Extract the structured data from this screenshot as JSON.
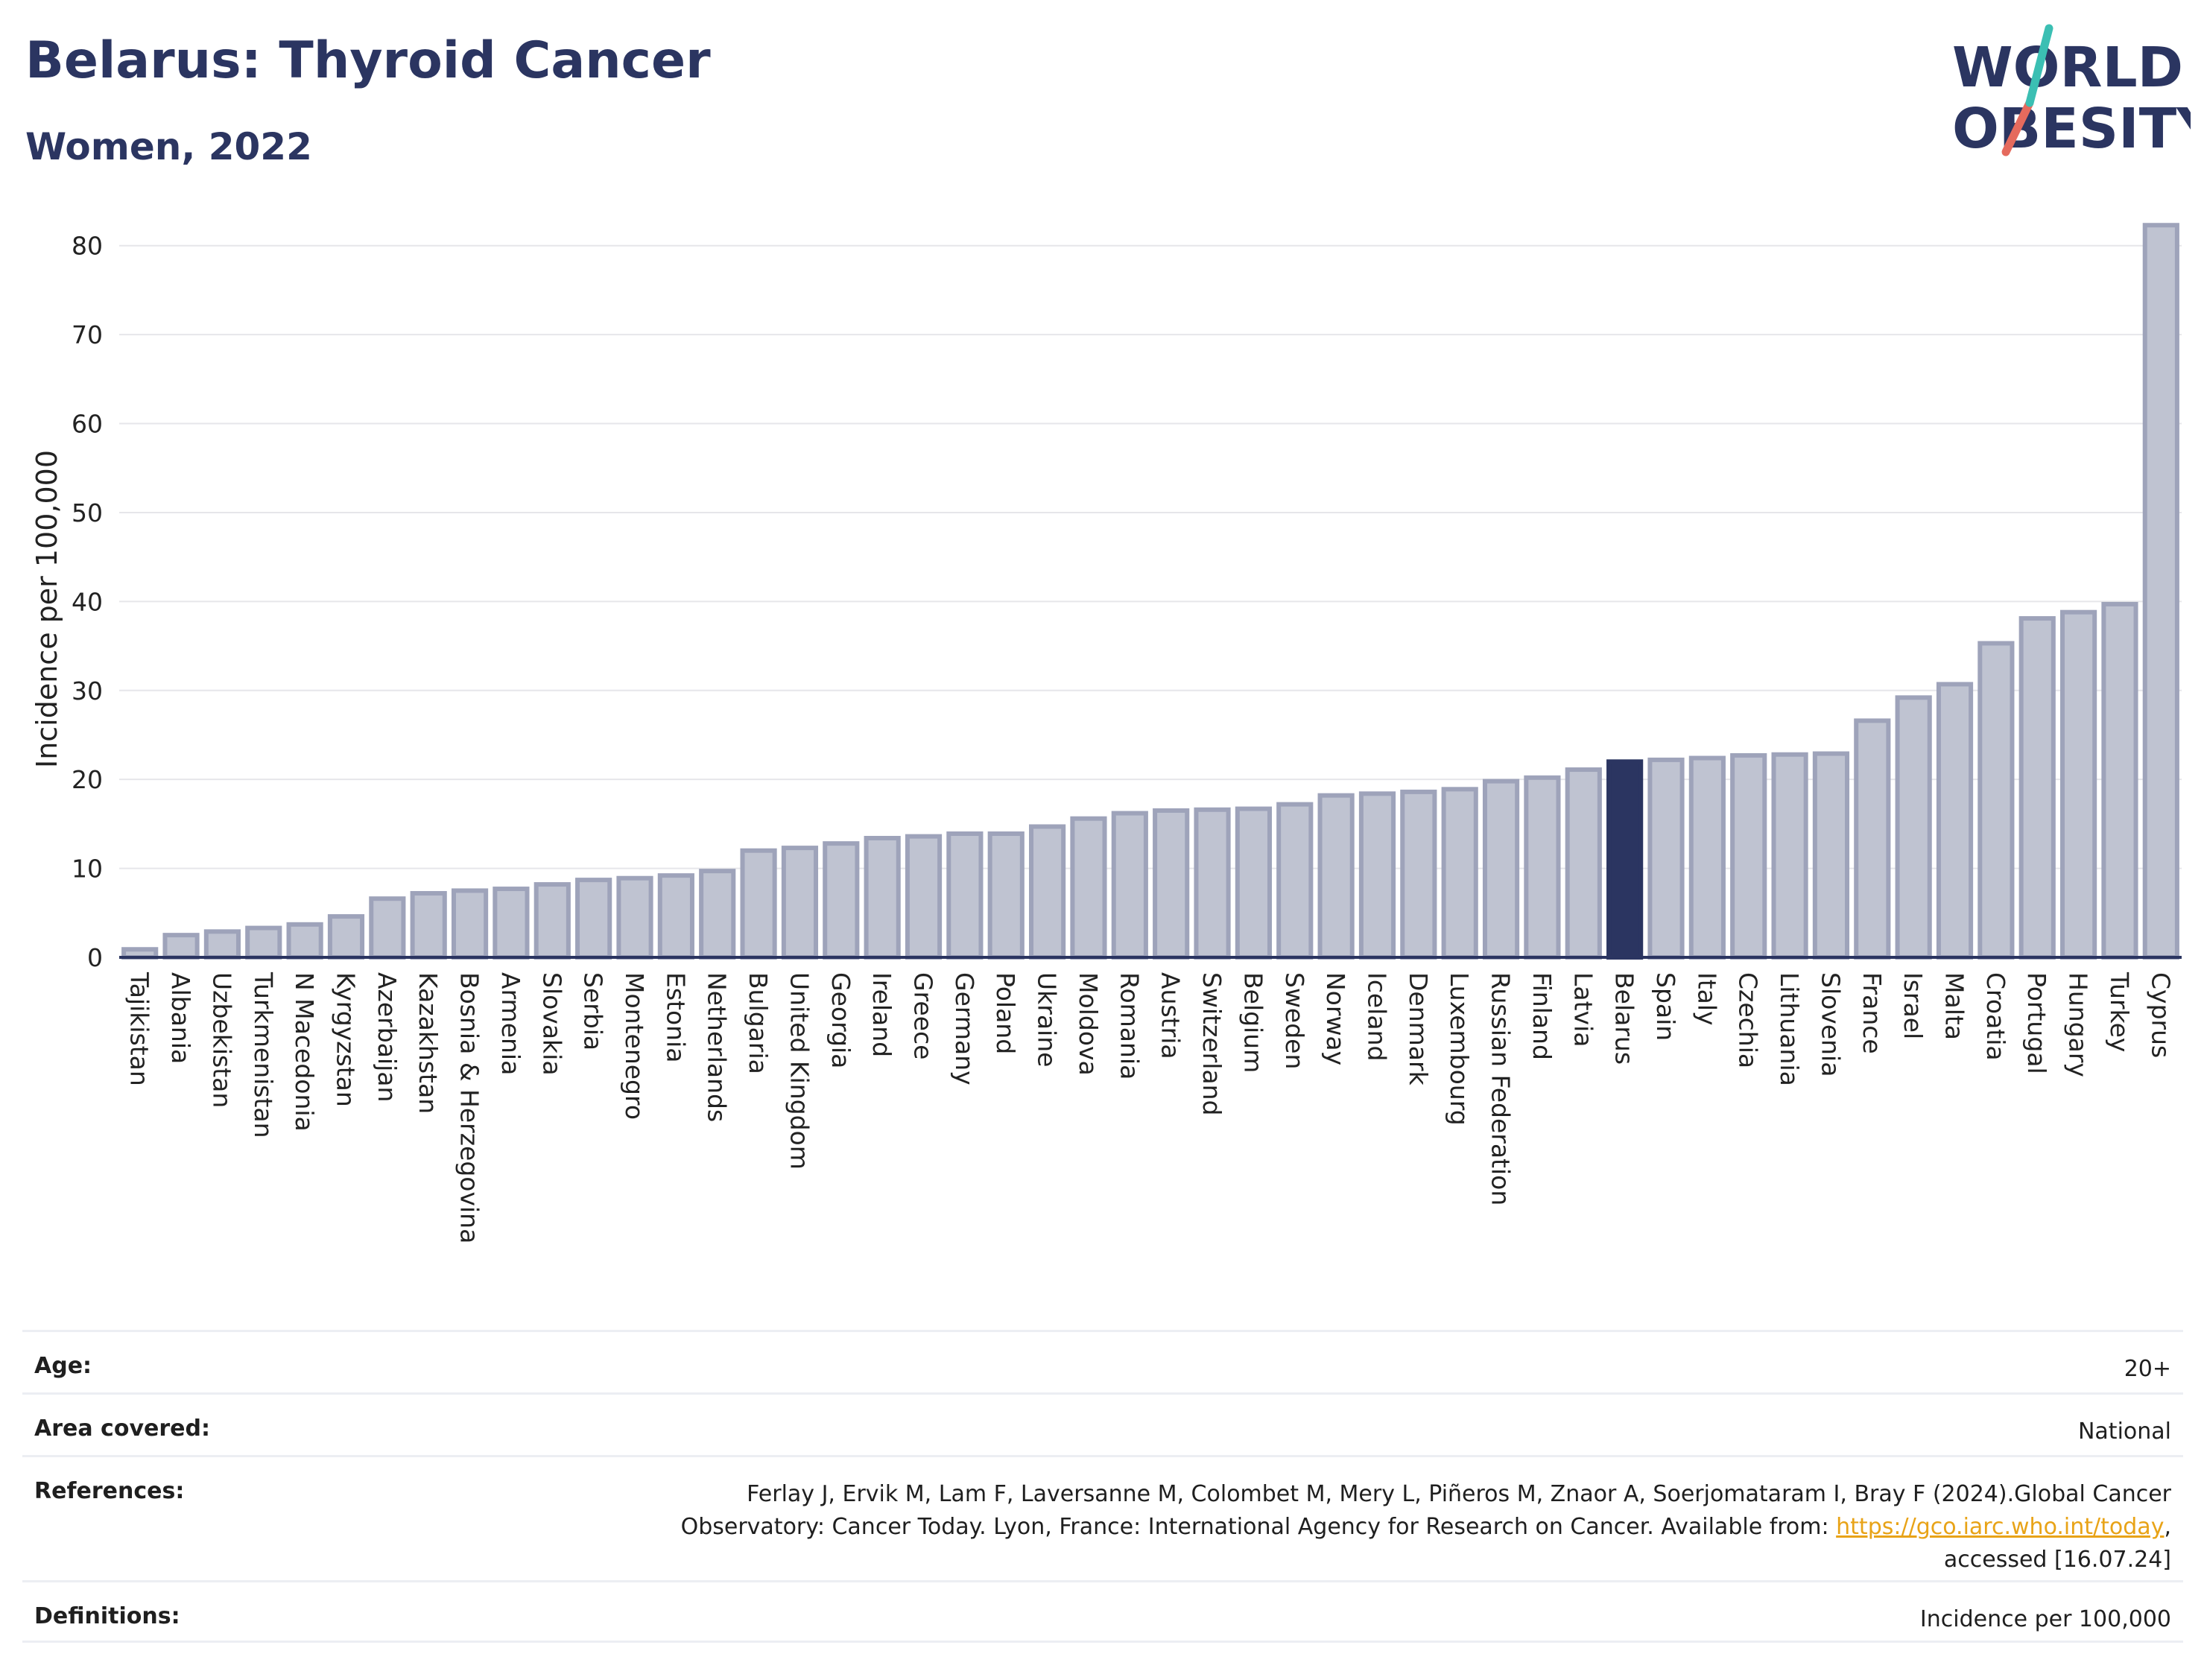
{
  "header": {
    "title": "Belarus: Thyroid Cancer",
    "subtitle": "Women, 2022"
  },
  "logo": {
    "line1": "WORLD",
    "line2": "OBESITY"
  },
  "colors": {
    "accent": "#2b3561",
    "bar": "#bfc3d1",
    "bar_border": "#9ea3ba",
    "logo_teal": "#3bbfb3",
    "logo_coral": "#e56a5d",
    "link": "#e8a317"
  },
  "chart_data": {
    "type": "bar",
    "ylabel": "Incidence per 100,000",
    "ylim": [
      0,
      85
    ],
    "yticks": [
      0,
      10,
      20,
      30,
      40,
      50,
      60,
      70,
      80
    ],
    "grid": true,
    "highlight": "Belarus",
    "categories": [
      "Tajikistan",
      "Albania",
      "Uzbekistan",
      "Turkmenistan",
      "N Macedonia",
      "Kyrgyzstan",
      "Azerbaijan",
      "Kazakhstan",
      "Bosnia & Herzegovina",
      "Armenia",
      "Slovakia",
      "Serbia",
      "Montenegro",
      "Estonia",
      "Netherlands",
      "Bulgaria",
      "United Kingdom",
      "Georgia",
      "Ireland",
      "Greece",
      "Germany",
      "Poland",
      "Ukraine",
      "Moldova",
      "Romania",
      "Austria",
      "Switzerland",
      "Belgium",
      "Sweden",
      "Norway",
      "Iceland",
      "Denmark",
      "Luxembourg",
      "Russian Federation",
      "Finland",
      "Latvia",
      "Belarus",
      "Spain",
      "Italy",
      "Czechia",
      "Lithuania",
      "Slovenia",
      "France",
      "Israel",
      "Malta",
      "Croatia",
      "Portugal",
      "Hungary",
      "Turkey",
      "Cyprus"
    ],
    "values": [
      0.9,
      2.5,
      2.9,
      3.3,
      3.7,
      4.6,
      6.6,
      7.2,
      7.5,
      7.7,
      8.2,
      8.7,
      8.9,
      9.2,
      9.7,
      12.0,
      12.3,
      12.8,
      13.4,
      13.6,
      13.9,
      13.9,
      14.7,
      15.6,
      16.2,
      16.5,
      16.6,
      16.7,
      17.2,
      18.2,
      18.4,
      18.6,
      18.9,
      19.8,
      20.2,
      21.1,
      22.0,
      22.2,
      22.4,
      22.7,
      22.8,
      22.9,
      26.6,
      29.2,
      30.7,
      35.3,
      38.1,
      38.8,
      39.7,
      82.3
    ]
  },
  "info": {
    "age_label": "Age:",
    "age_value": "20+",
    "area_label": "Area covered:",
    "area_value": "National",
    "references_label": "References:",
    "references_line1": "Ferlay J, Ervik M, Lam F, Laversanne M, Colombet M, Mery L, Piñeros M, Znaor A, Soerjomataram I, Bray F (2024).Global Cancer",
    "references_line2": "Observatory: Cancer Today. Lyon, France: International Agency for Research on Cancer. Available from: ",
    "references_link": "https://gco.iarc.who.int/today",
    "references_line2_end": ",",
    "references_line3": "accessed [16.07.24]",
    "definitions_label": "Definitions:",
    "definitions_value": "Incidence per 100,000"
  }
}
